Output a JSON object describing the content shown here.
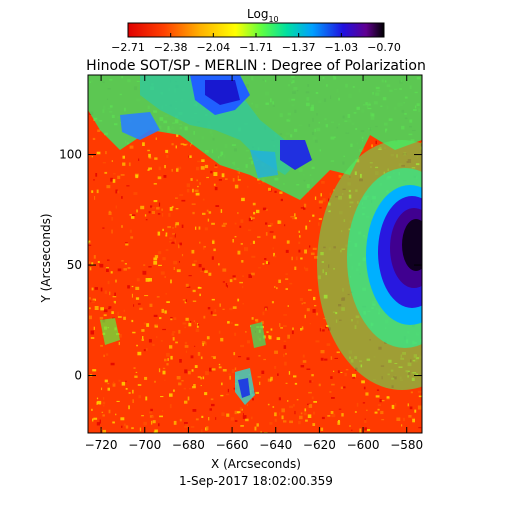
{
  "chart_data": {
    "type": "heatmap",
    "title": "Hinode SOT/SP - MERLIN : Degree of Polarization",
    "subtitle": "1-Sep-2017 18:02:00.359",
    "xlabel": "X (Arcseconds)",
    "ylabel": "Y (Arcseconds)",
    "xlim": [
      -726,
      -573
    ],
    "ylim": [
      -26,
      136
    ],
    "x_ticks": [
      -720,
      -700,
      -680,
      -660,
      -640,
      -620,
      -600,
      -580
    ],
    "y_ticks": [
      0,
      50,
      100
    ],
    "colorbar": {
      "label_base": "Log",
      "label_sub": "10",
      "range": [
        -2.71,
        -0.7
      ],
      "tick_labels": [
        "-2.71",
        "-2.38",
        "-2.04",
        "-1.71",
        "-1.37",
        "-1.03",
        "-0.70"
      ],
      "colormap": "rainbow (red low → black high)"
    },
    "features": [
      {
        "name": "sunspot umbra/penumbra",
        "x": -582,
        "y": 55,
        "level": "high"
      },
      {
        "name": "polarized network patches",
        "x": -650,
        "y": 115,
        "level": "mid"
      },
      {
        "name": "quiet-sun background",
        "level": "low"
      }
    ]
  }
}
